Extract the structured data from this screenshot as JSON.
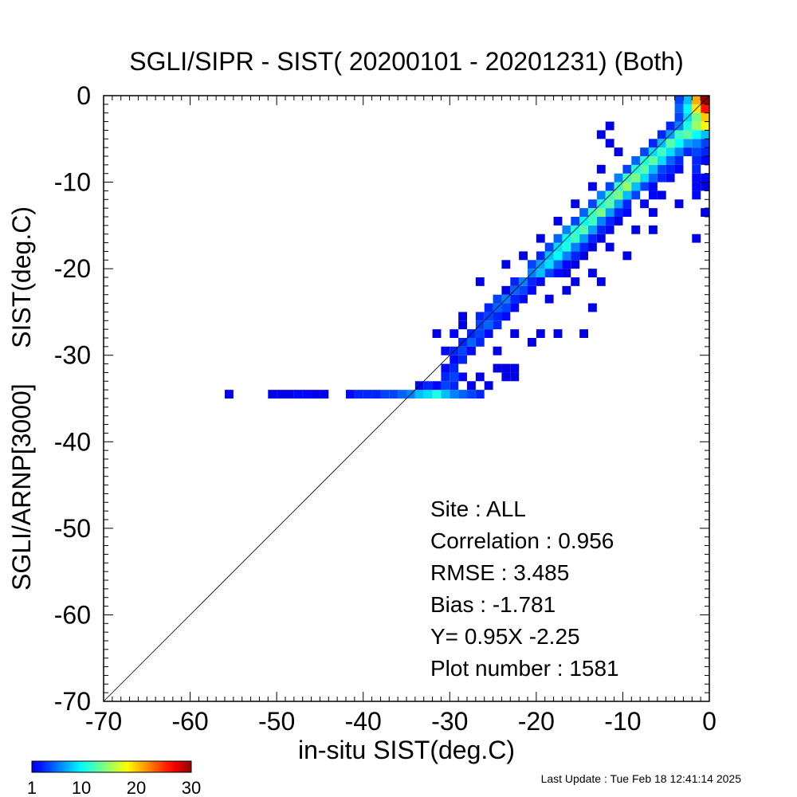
{
  "chart_data": {
    "type": "heatmap",
    "title": "SGLI/SIPR - SIST( 20200101 - 20201231) (Both)",
    "xlabel": "in-situ SIST(deg.C)",
    "ylabel": "SGLI/ARNP[3000]     SIST(deg.C)",
    "xlim": [
      -70,
      0
    ],
    "ylim": [
      -70,
      0
    ],
    "x_ticks": [
      -70,
      -60,
      -50,
      -40,
      -30,
      -20,
      -10,
      0
    ],
    "y_ticks": [
      -70,
      -60,
      -50,
      -40,
      -30,
      -20,
      -10,
      0
    ],
    "x_tick_labels": [
      "-70",
      "-60",
      "-50",
      "-40",
      "-30",
      "-20",
      "-10",
      "0"
    ],
    "y_tick_labels": [
      "-70",
      "-60",
      "-50",
      "-40",
      "-30",
      "-20",
      "-10",
      "0"
    ],
    "reference_line": "y = x",
    "grid": false,
    "bin_size": 1,
    "colorbar": {
      "range": [
        1,
        30
      ],
      "tick_values": [
        1,
        10,
        20,
        30
      ],
      "tick_labels": [
        "1",
        "10",
        "20",
        "30"
      ],
      "colormap": "jet"
    },
    "points": [
      [
        -55,
        -34,
        1
      ],
      [
        -50,
        -34,
        1
      ],
      [
        -49,
        -34,
        1
      ],
      [
        -48,
        -34,
        1
      ],
      [
        -47,
        -34,
        2
      ],
      [
        -46,
        -34,
        2
      ],
      [
        -45,
        -34,
        1
      ],
      [
        -44,
        -34,
        1
      ],
      [
        -41,
        -34,
        2
      ],
      [
        -40,
        -34,
        3
      ],
      [
        -39,
        -34,
        3
      ],
      [
        -38,
        -34,
        3
      ],
      [
        -37,
        -34,
        4
      ],
      [
        -36,
        -34,
        4
      ],
      [
        -35,
        -34,
        5
      ],
      [
        -34,
        -34,
        6
      ],
      [
        -33,
        -34,
        8
      ],
      [
        -32,
        -34,
        9
      ],
      [
        -31,
        -34,
        11
      ],
      [
        -30,
        -34,
        8
      ],
      [
        -29,
        -34,
        6
      ],
      [
        -28,
        -34,
        5
      ],
      [
        -27,
        -34,
        4
      ],
      [
        -26,
        -34,
        3
      ],
      [
        -33,
        -33,
        2
      ],
      [
        -32,
        -33,
        3
      ],
      [
        -31,
        -33,
        2
      ],
      [
        -30,
        -33,
        4
      ],
      [
        -29,
        -33,
        3
      ],
      [
        -27,
        -33,
        1
      ],
      [
        -25,
        -33,
        1
      ],
      [
        -30,
        -32,
        3
      ],
      [
        -29,
        -32,
        4
      ],
      [
        -28,
        -32,
        2
      ],
      [
        -26,
        -32,
        1
      ],
      [
        -23,
        -32,
        1
      ],
      [
        -22,
        -32,
        1
      ],
      [
        -30,
        -31,
        2
      ],
      [
        -29,
        -31,
        3
      ],
      [
        -24,
        -31,
        1
      ],
      [
        -23,
        -31,
        1
      ],
      [
        -22,
        -31,
        1
      ],
      [
        -29,
        -30,
        2
      ],
      [
        -28,
        -30,
        3
      ],
      [
        -30,
        -29,
        2
      ],
      [
        -29,
        -29,
        3
      ],
      [
        -28,
        -29,
        4
      ],
      [
        -27,
        -29,
        2
      ],
      [
        -24,
        -29,
        1
      ],
      [
        -28,
        -28,
        3
      ],
      [
        -27,
        -28,
        5
      ],
      [
        -26,
        -28,
        3
      ],
      [
        -20,
        -28,
        1
      ],
      [
        -31,
        -27,
        1
      ],
      [
        -29,
        -27,
        2
      ],
      [
        -27,
        -27,
        3
      ],
      [
        -26,
        -27,
        4
      ],
      [
        -25,
        -27,
        2
      ],
      [
        -22,
        -27,
        1
      ],
      [
        -19,
        -27,
        1
      ],
      [
        -17,
        -27,
        1
      ],
      [
        -14,
        -27,
        1
      ],
      [
        -26,
        -26,
        4
      ],
      [
        -25,
        -26,
        5
      ],
      [
        -24,
        -26,
        3
      ],
      [
        -28,
        -26,
        1
      ],
      [
        -28,
        -25,
        1
      ],
      [
        -26,
        -25,
        3
      ],
      [
        -25,
        -25,
        4
      ],
      [
        -24,
        -25,
        3
      ],
      [
        -23,
        -25,
        2
      ],
      [
        -25,
        -24,
        3
      ],
      [
        -24,
        -24,
        5
      ],
      [
        -23,
        -24,
        4
      ],
      [
        -22,
        -24,
        2
      ],
      [
        -13,
        -24,
        1
      ],
      [
        -24,
        -23,
        4
      ],
      [
        -23,
        -23,
        6
      ],
      [
        -22,
        -23,
        3
      ],
      [
        -21,
        -23,
        2
      ],
      [
        -18,
        -23,
        1
      ],
      [
        -22,
        -22,
        5
      ],
      [
        -21,
        -22,
        4
      ],
      [
        -20,
        -22,
        2
      ],
      [
        -23,
        -22,
        1
      ],
      [
        -16,
        -22,
        1
      ],
      [
        -26,
        -21,
        1
      ],
      [
        -22,
        -21,
        3
      ],
      [
        -21,
        -21,
        6
      ],
      [
        -20,
        -21,
        3
      ],
      [
        -19,
        -21,
        2
      ],
      [
        -15,
        -21,
        1
      ],
      [
        -12,
        -21,
        1
      ],
      [
        -20,
        -20,
        6
      ],
      [
        -19,
        -20,
        8
      ],
      [
        -18,
        -20,
        4
      ],
      [
        -17,
        -20,
        2
      ],
      [
        -16,
        -20,
        1
      ],
      [
        -13,
        -20,
        1
      ],
      [
        -23,
        -19,
        1
      ],
      [
        -20,
        -19,
        4
      ],
      [
        -19,
        -19,
        7
      ],
      [
        -18,
        -19,
        9
      ],
      [
        -17,
        -19,
        5
      ],
      [
        -16,
        -19,
        2
      ],
      [
        -15,
        -19,
        1
      ],
      [
        -21,
        -18,
        1
      ],
      [
        -19,
        -18,
        3
      ],
      [
        -18,
        -18,
        8
      ],
      [
        -17,
        -18,
        10
      ],
      [
        -16,
        -18,
        6
      ],
      [
        -15,
        -18,
        3
      ],
      [
        -14,
        -18,
        1
      ],
      [
        -9,
        -18,
        1
      ],
      [
        -18,
        -17,
        4
      ],
      [
        -17,
        -17,
        9
      ],
      [
        -16,
        -17,
        11
      ],
      [
        -15,
        -17,
        6
      ],
      [
        -14,
        -17,
        3
      ],
      [
        -13,
        -17,
        1
      ],
      [
        -11,
        -17,
        1
      ],
      [
        -19,
        -16,
        1
      ],
      [
        -17,
        -16,
        5
      ],
      [
        -16,
        -16,
        10
      ],
      [
        -15,
        -16,
        12
      ],
      [
        -14,
        -16,
        7
      ],
      [
        -13,
        -16,
        3
      ],
      [
        -12,
        -16,
        1
      ],
      [
        -1,
        -16,
        1
      ],
      [
        -16,
        -15,
        6
      ],
      [
        -15,
        -15,
        11
      ],
      [
        -14,
        -15,
        13
      ],
      [
        -13,
        -15,
        7
      ],
      [
        -12,
        -15,
        3
      ],
      [
        -11,
        -15,
        2
      ],
      [
        -8,
        -15,
        1
      ],
      [
        -6,
        -15,
        1
      ],
      [
        -17,
        -14,
        1
      ],
      [
        -15,
        -14,
        4
      ],
      [
        -14,
        -14,
        10
      ],
      [
        -13,
        -14,
        12
      ],
      [
        -12,
        -14,
        6
      ],
      [
        -11,
        -14,
        3
      ],
      [
        -10,
        -14,
        1
      ],
      [
        -14,
        -13,
        5
      ],
      [
        -13,
        -13,
        12
      ],
      [
        -12,
        -13,
        14
      ],
      [
        -11,
        -13,
        7
      ],
      [
        -10,
        -13,
        3
      ],
      [
        -9,
        -13,
        2
      ],
      [
        -6,
        -13,
        1
      ],
      [
        0,
        -13,
        1
      ],
      [
        -15,
        -12,
        1
      ],
      [
        -13,
        -12,
        4
      ],
      [
        -12,
        -12,
        11
      ],
      [
        -11,
        -12,
        13
      ],
      [
        -10,
        -12,
        7
      ],
      [
        -9,
        -12,
        3
      ],
      [
        -7,
        -12,
        2
      ],
      [
        -3,
        -12,
        1
      ],
      [
        -12,
        -11,
        6
      ],
      [
        -11,
        -11,
        12
      ],
      [
        -10,
        -11,
        14
      ],
      [
        -9,
        -11,
        8
      ],
      [
        -8,
        -11,
        4
      ],
      [
        -6,
        -11,
        2
      ],
      [
        -5,
        -11,
        1
      ],
      [
        -1,
        -11,
        2
      ],
      [
        -13,
        -10,
        1
      ],
      [
        -11,
        -10,
        4
      ],
      [
        -10,
        -10,
        12
      ],
      [
        -9,
        -10,
        15
      ],
      [
        -8,
        -10,
        8
      ],
      [
        -7,
        -10,
        4
      ],
      [
        -6,
        -10,
        2
      ],
      [
        -1,
        -10,
        2
      ],
      [
        0,
        -10,
        1
      ],
      [
        -10,
        -9,
        6
      ],
      [
        -9,
        -9,
        12
      ],
      [
        -8,
        -9,
        14
      ],
      [
        -7,
        -9,
        9
      ],
      [
        -6,
        -9,
        5
      ],
      [
        -5,
        -9,
        3
      ],
      [
        -4,
        -9,
        2
      ],
      [
        -1,
        -9,
        2
      ],
      [
        0,
        -9,
        2
      ],
      [
        -12,
        -8,
        1
      ],
      [
        -9,
        -8,
        4
      ],
      [
        -8,
        -8,
        11
      ],
      [
        -7,
        -8,
        13
      ],
      [
        -6,
        -8,
        8
      ],
      [
        -5,
        -8,
        4
      ],
      [
        -4,
        -8,
        3
      ],
      [
        -3,
        -8,
        2
      ],
      [
        -1,
        -8,
        3
      ],
      [
        -8,
        -7,
        5
      ],
      [
        -7,
        -7,
        11
      ],
      [
        -6,
        -7,
        13
      ],
      [
        -5,
        -7,
        9
      ],
      [
        -4,
        -7,
        5
      ],
      [
        -3,
        -7,
        3
      ],
      [
        -1,
        -7,
        3
      ],
      [
        0,
        -7,
        2
      ],
      [
        -10,
        -6,
        1
      ],
      [
        -7,
        -6,
        4
      ],
      [
        -6,
        -6,
        9
      ],
      [
        -5,
        -6,
        12
      ],
      [
        -4,
        -6,
        9
      ],
      [
        -3,
        -6,
        6
      ],
      [
        -2,
        -6,
        3
      ],
      [
        -1,
        -6,
        4
      ],
      [
        0,
        -6,
        3
      ],
      [
        -11,
        -5,
        1
      ],
      [
        -6,
        -5,
        3
      ],
      [
        -5,
        -5,
        8
      ],
      [
        -4,
        -5,
        13
      ],
      [
        -3,
        -5,
        10
      ],
      [
        -2,
        -5,
        7
      ],
      [
        -1,
        -5,
        6
      ],
      [
        0,
        -5,
        4
      ],
      [
        -12,
        -4,
        1
      ],
      [
        -5,
        -4,
        3
      ],
      [
        -4,
        -4,
        7
      ],
      [
        -3,
        -4,
        12
      ],
      [
        -2,
        -4,
        13
      ],
      [
        -1,
        -4,
        10
      ],
      [
        0,
        -4,
        8
      ],
      [
        -11,
        -3,
        1
      ],
      [
        -4,
        -3,
        3
      ],
      [
        -3,
        -3,
        6
      ],
      [
        -2,
        -3,
        11
      ],
      [
        -1,
        -3,
        15
      ],
      [
        0,
        -3,
        18
      ],
      [
        -3,
        -2,
        4
      ],
      [
        -2,
        -2,
        9
      ],
      [
        -1,
        -2,
        14
      ],
      [
        0,
        -2,
        20
      ],
      [
        -3,
        -1,
        5
      ],
      [
        -2,
        -1,
        10
      ],
      [
        -1,
        -1,
        19
      ],
      [
        0,
        -1,
        26
      ],
      [
        -3,
        0,
        4
      ],
      [
        -2,
        0,
        8
      ],
      [
        -1,
        0,
        21
      ],
      [
        0,
        0,
        30
      ]
    ],
    "annotations": [
      {
        "label": "Site",
        "sep": ":",
        "value": "ALL"
      },
      {
        "label": "Correlation",
        "sep": ":",
        "value": "0.956"
      },
      {
        "label": "RMSE",
        "sep": ":",
        "value": "3.485"
      },
      {
        "label": "Bias",
        "sep": ":",
        "value": "-1.781"
      },
      {
        "label": "Y=",
        "sep": "",
        "value": "0.95X  -2.25"
      },
      {
        "label": "Plot number",
        "sep": ":",
        "value": "1581"
      }
    ],
    "footer": "Last Update : Tue Feb 18 12:41:14 2025"
  }
}
